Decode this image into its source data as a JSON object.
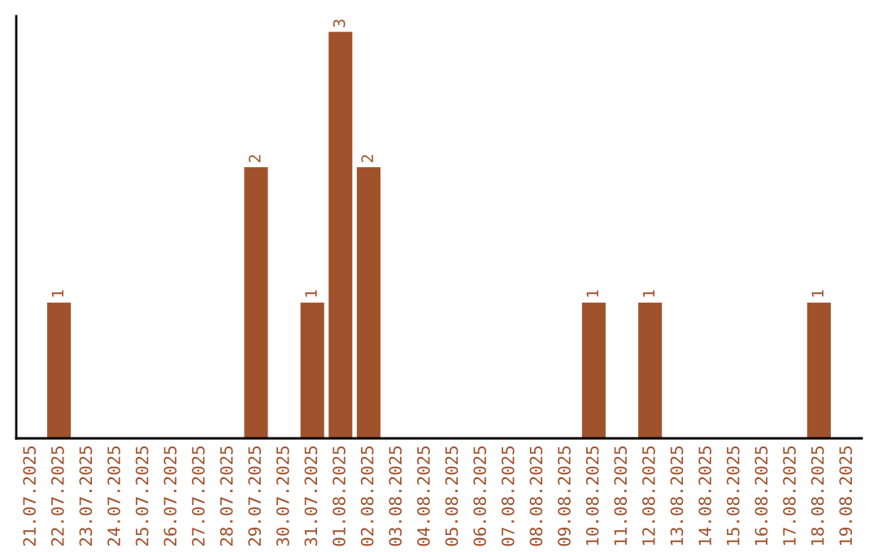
{
  "chart_data": {
    "type": "bar",
    "categories": [
      "21.07.2025",
      "22.07.2025",
      "23.07.2025",
      "24.07.2025",
      "25.07.2025",
      "26.07.2025",
      "27.07.2025",
      "28.07.2025",
      "29.07.2025",
      "30.07.2025",
      "31.07.2025",
      "01.08.2025",
      "02.08.2025",
      "03.08.2025",
      "04.08.2025",
      "05.08.2025",
      "06.08.2025",
      "07.08.2025",
      "08.08.2025",
      "09.08.2025",
      "10.08.2025",
      "11.08.2025",
      "12.08.2025",
      "13.08.2025",
      "14.08.2025",
      "15.08.2025",
      "16.08.2025",
      "17.08.2025",
      "18.08.2025",
      "19.08.2025"
    ],
    "values": [
      0,
      1,
      0,
      0,
      0,
      0,
      0,
      0,
      2,
      0,
      1,
      3,
      2,
      0,
      0,
      0,
      0,
      0,
      0,
      0,
      1,
      0,
      1,
      0,
      0,
      0,
      0,
      0,
      1,
      0
    ],
    "value_labels": [
      null,
      "1",
      null,
      null,
      null,
      null,
      null,
      null,
      "2",
      null,
      "1",
      "3",
      "2",
      null,
      null,
      null,
      null,
      null,
      null,
      null,
      "1",
      null,
      "1",
      null,
      null,
      null,
      null,
      null,
      "1",
      null
    ],
    "color": "#a0522d",
    "tick_labels": "x",
    "grid": false,
    "legend": false
  }
}
